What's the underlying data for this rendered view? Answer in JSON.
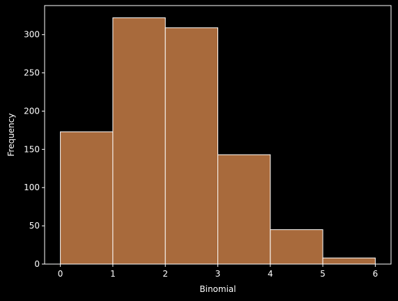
{
  "chart_data": {
    "type": "bar",
    "title": "",
    "xlabel": "Binomial",
    "ylabel": "Frequency",
    "bins": [
      {
        "x0": 0,
        "x1": 1,
        "count": 173
      },
      {
        "x0": 1,
        "x1": 2,
        "count": 322
      },
      {
        "x0": 2,
        "x1": 3,
        "count": 309
      },
      {
        "x0": 3,
        "x1": 4,
        "count": 143
      },
      {
        "x0": 4,
        "x1": 5,
        "count": 45
      },
      {
        "x0": 5,
        "x1": 6,
        "count": 8
      }
    ],
    "xlim": [
      -0.3,
      6.3
    ],
    "ylim": [
      0,
      338
    ],
    "xticks": [
      0,
      1,
      2,
      3,
      4,
      5,
      6
    ],
    "yticks": [
      0,
      50,
      100,
      150,
      200,
      250,
      300
    ],
    "xtick_labels": [
      "0",
      "1",
      "2",
      "3",
      "4",
      "5",
      "6"
    ],
    "ytick_labels": [
      "0",
      "50",
      "100",
      "150",
      "200",
      "250",
      "300"
    ],
    "grid": false,
    "bar_color": "#a86a3c",
    "edge_color": "#ffffff",
    "background": "#000000"
  }
}
